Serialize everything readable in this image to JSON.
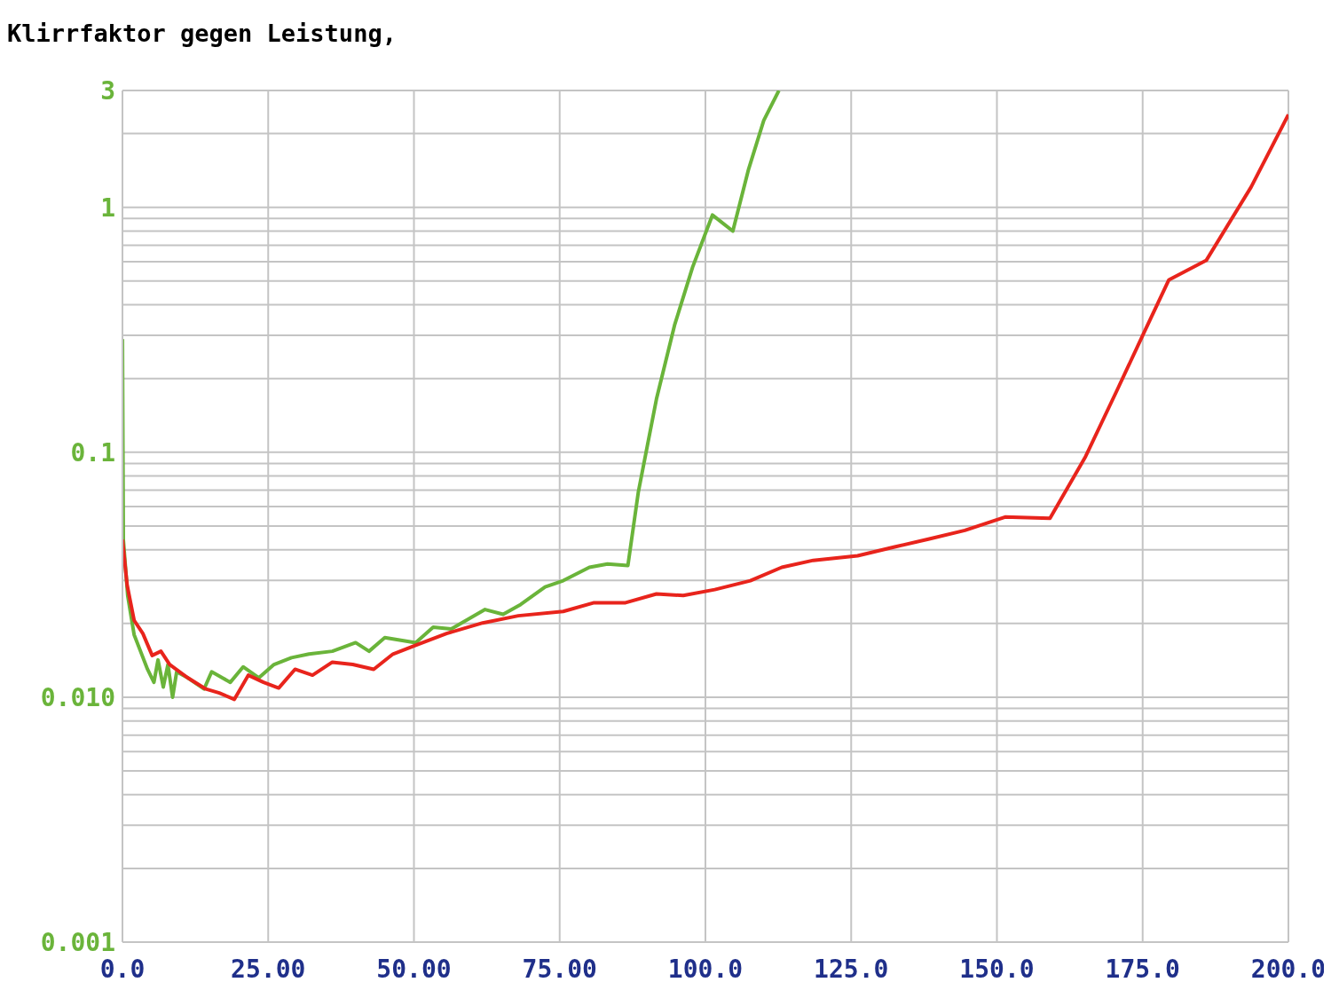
{
  "chart_data": {
    "type": "line",
    "title": "Klirrfaktor gegen Leistung,",
    "log": "y",
    "grid": true,
    "marker": "none",
    "line_style": "solid",
    "xlim": [
      0,
      200
    ],
    "xticks": [
      {
        "value": 0,
        "label": "0.0"
      },
      {
        "value": 25,
        "label": "25.00"
      },
      {
        "value": 50,
        "label": "50.00"
      },
      {
        "value": 75,
        "label": "75.00"
      },
      {
        "value": 100,
        "label": "100.0"
      },
      {
        "value": 125,
        "label": "125.0"
      },
      {
        "value": 150,
        "label": "150.0"
      },
      {
        "value": 175,
        "label": "175.0"
      },
      {
        "value": 200,
        "label": "200.0"
      }
    ],
    "ylim": [
      0.001,
      3
    ],
    "yticks": [
      {
        "value": 0.001,
        "label": "0.001"
      },
      {
        "value": 0.002,
        "label": null
      },
      {
        "value": 0.003,
        "label": null
      },
      {
        "value": 0.004,
        "label": null
      },
      {
        "value": 0.005,
        "label": null
      },
      {
        "value": 0.006,
        "label": null
      },
      {
        "value": 0.007,
        "label": null
      },
      {
        "value": 0.008,
        "label": null
      },
      {
        "value": 0.009,
        "label": null
      },
      {
        "value": 0.01,
        "label": "0.010"
      },
      {
        "value": 0.02,
        "label": null
      },
      {
        "value": 0.03,
        "label": null
      },
      {
        "value": 0.04,
        "label": null
      },
      {
        "value": 0.05,
        "label": null
      },
      {
        "value": 0.06,
        "label": null
      },
      {
        "value": 0.07,
        "label": null
      },
      {
        "value": 0.08,
        "label": null
      },
      {
        "value": 0.09,
        "label": null
      },
      {
        "value": 0.1,
        "label": "0.1"
      },
      {
        "value": 0.2,
        "label": null
      },
      {
        "value": 0.3,
        "label": null
      },
      {
        "value": 0.4,
        "label": null
      },
      {
        "value": 0.5,
        "label": null
      },
      {
        "value": 0.6,
        "label": null
      },
      {
        "value": 0.7,
        "label": null
      },
      {
        "value": 0.8,
        "label": null
      },
      {
        "value": 0.9,
        "label": null
      },
      {
        "value": 1,
        "label": "1"
      },
      {
        "value": 2,
        "label": null
      },
      {
        "value": 3,
        "label": "3"
      }
    ],
    "series": [
      {
        "color": "#6ab43a",
        "x": [
          0,
          0.15,
          0.9,
          2.0,
          3.1,
          4.3,
          5.4,
          6.1,
          7.0,
          7.8,
          8.6,
          9.3,
          11.2,
          14.0,
          15.3,
          18.5,
          20.7,
          23.4,
          26.0,
          29.0,
          32.0,
          36.0,
          40.0,
          42.3,
          45.0,
          50.3,
          53.3,
          56.4,
          62.2,
          65.3,
          68.3,
          72.5,
          75.6,
          80.1,
          83.2,
          86.7,
          88.5,
          91.6,
          94.7,
          97.8,
          101.2,
          104.7,
          107.4,
          110.0,
          112.6
        ],
        "values": [
          0.29,
          0.044,
          0.026,
          0.018,
          0.0154,
          0.013,
          0.0115,
          0.0142,
          0.011,
          0.0136,
          0.01,
          0.0127,
          0.012,
          0.0108,
          0.0127,
          0.0115,
          0.0133,
          0.012,
          0.0136,
          0.0145,
          0.015,
          0.0154,
          0.0167,
          0.0154,
          0.0175,
          0.0167,
          0.0193,
          0.019,
          0.0228,
          0.0218,
          0.0239,
          0.0282,
          0.0299,
          0.0339,
          0.035,
          0.0345,
          0.069,
          0.165,
          0.33,
          0.57,
          0.93,
          0.8,
          1.43,
          2.26,
          3
        ]
      },
      {
        "color": "#e8241c",
        "x": [
          0,
          0.8,
          2.0,
          3.5,
          5.1,
          6.6,
          8.1,
          11.2,
          14.3,
          16.6,
          19.2,
          21.6,
          24.2,
          26.8,
          29.6,
          32.6,
          36.0,
          39.5,
          43.1,
          46.4,
          50.3,
          55.6,
          61.8,
          67.9,
          75.6,
          80.9,
          86.3,
          91.6,
          96.2,
          101.6,
          107.7,
          113.1,
          118.5,
          126.1,
          132.3,
          138.4,
          144.5,
          151.4,
          155.2,
          159.1,
          165.2,
          170.6,
          175.2,
          179.5,
          185.9,
          193.6,
          200
        ],
        "values": [
          0.044,
          0.0287,
          0.0206,
          0.0182,
          0.0148,
          0.0154,
          0.0136,
          0.012,
          0.0108,
          0.0104,
          0.0098,
          0.0123,
          0.0115,
          0.0109,
          0.013,
          0.0123,
          0.0139,
          0.0136,
          0.013,
          0.015,
          0.0163,
          0.0182,
          0.0201,
          0.0215,
          0.0224,
          0.0243,
          0.0243,
          0.0264,
          0.026,
          0.0275,
          0.0299,
          0.0339,
          0.0362,
          0.0378,
          0.041,
          0.0443,
          0.048,
          0.0544,
          0.0541,
          0.0537,
          0.096,
          0.179,
          0.307,
          0.506,
          0.607,
          1.21,
          2.39
        ]
      }
    ]
  }
}
